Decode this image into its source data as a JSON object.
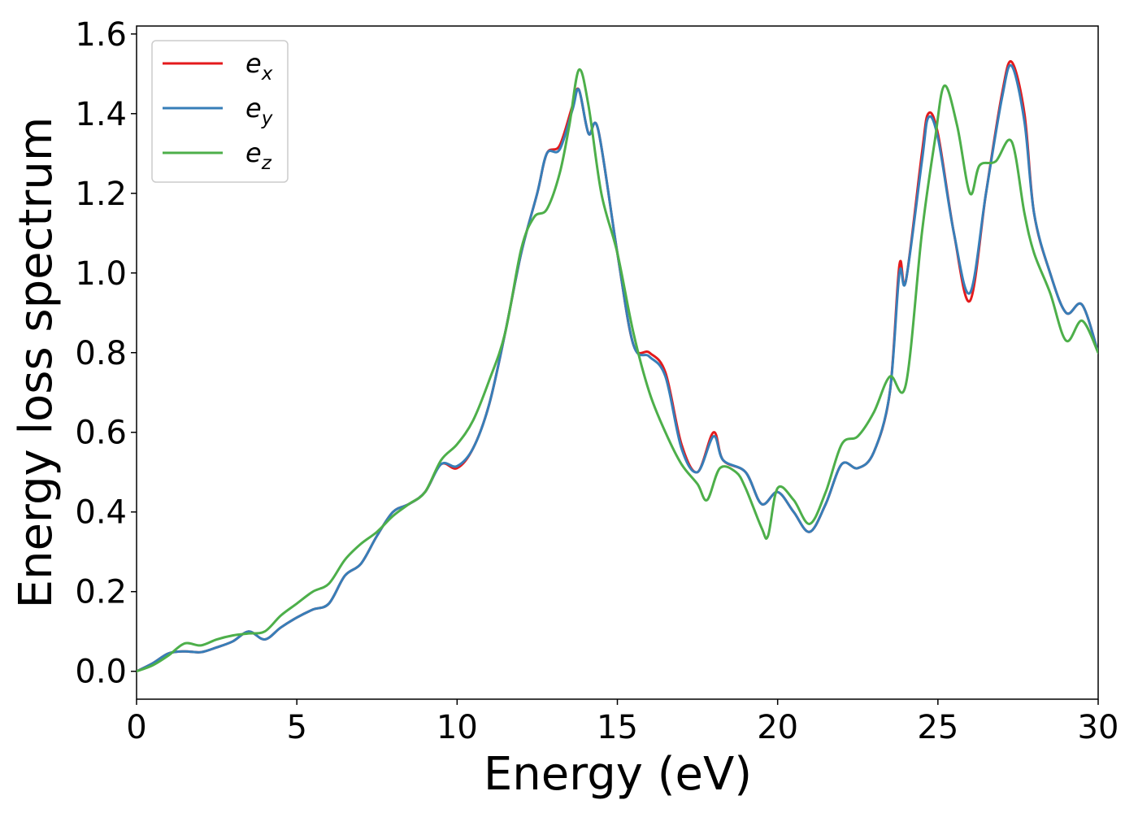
{
  "chart_data": {
    "type": "line",
    "title": "",
    "xlabel": "Energy (eV)",
    "ylabel": "Energy loss spectrum",
    "xlim": [
      0,
      30
    ],
    "ylim": [
      -0.07,
      1.62
    ],
    "xticks": [
      0,
      5,
      10,
      15,
      20,
      25,
      30
    ],
    "xtick_labels": [
      "0",
      "5",
      "10",
      "15",
      "20",
      "25",
      "30"
    ],
    "yticks": [
      0.0,
      0.2,
      0.4,
      0.6,
      0.8,
      1.0,
      1.2,
      1.4,
      1.6
    ],
    "ytick_labels": [
      "0.0",
      "0.2",
      "0.4",
      "0.6",
      "0.8",
      "1.0",
      "1.2",
      "1.4",
      "1.6"
    ],
    "grid": false,
    "legend_position": "top-left",
    "series": [
      {
        "name": "e",
        "subscript": "x",
        "color": "#e41a1c",
        "points": [
          [
            0,
            0.0
          ],
          [
            0.5,
            0.02
          ],
          [
            1,
            0.045
          ],
          [
            1.5,
            0.05
          ],
          [
            2,
            0.048
          ],
          [
            2.5,
            0.06
          ],
          [
            3,
            0.075
          ],
          [
            3.5,
            0.1
          ],
          [
            4,
            0.08
          ],
          [
            4.5,
            0.11
          ],
          [
            5,
            0.135
          ],
          [
            5.5,
            0.155
          ],
          [
            6,
            0.17
          ],
          [
            6.5,
            0.24
          ],
          [
            7,
            0.27
          ],
          [
            7.5,
            0.34
          ],
          [
            8,
            0.4
          ],
          [
            8.5,
            0.42
          ],
          [
            9,
            0.45
          ],
          [
            9.5,
            0.52
          ],
          [
            10,
            0.51
          ],
          [
            10.5,
            0.56
          ],
          [
            11,
            0.67
          ],
          [
            11.5,
            0.85
          ],
          [
            12,
            1.05
          ],
          [
            12.5,
            1.2
          ],
          [
            12.8,
            1.3
          ],
          [
            13.2,
            1.32
          ],
          [
            13.6,
            1.42
          ],
          [
            13.8,
            1.46
          ],
          [
            14.1,
            1.35
          ],
          [
            14.4,
            1.36
          ],
          [
            15,
            1.05
          ],
          [
            15.5,
            0.82
          ],
          [
            16,
            0.8
          ],
          [
            16.5,
            0.75
          ],
          [
            17,
            0.57
          ],
          [
            17.5,
            0.5
          ],
          [
            18,
            0.6
          ],
          [
            18.3,
            0.53
          ],
          [
            19,
            0.5
          ],
          [
            19.5,
            0.42
          ],
          [
            20,
            0.45
          ],
          [
            20.5,
            0.4
          ],
          [
            21,
            0.35
          ],
          [
            21.5,
            0.42
          ],
          [
            22,
            0.52
          ],
          [
            22.5,
            0.51
          ],
          [
            23,
            0.55
          ],
          [
            23.5,
            0.7
          ],
          [
            23.8,
            1.02
          ],
          [
            24,
            0.98
          ],
          [
            24.5,
            1.3
          ],
          [
            24.7,
            1.4
          ],
          [
            25,
            1.35
          ],
          [
            25.5,
            1.1
          ],
          [
            26,
            0.93
          ],
          [
            26.5,
            1.2
          ],
          [
            27,
            1.45
          ],
          [
            27.3,
            1.53
          ],
          [
            27.7,
            1.4
          ],
          [
            28,
            1.15
          ],
          [
            28.5,
            1.0
          ],
          [
            29,
            0.9
          ],
          [
            29.5,
            0.92
          ],
          [
            30,
            0.8
          ]
        ]
      },
      {
        "name": "e",
        "subscript": "y",
        "color": "#377eb8",
        "points": [
          [
            0,
            0.0
          ],
          [
            0.5,
            0.02
          ],
          [
            1,
            0.045
          ],
          [
            1.5,
            0.05
          ],
          [
            2,
            0.048
          ],
          [
            2.5,
            0.06
          ],
          [
            3,
            0.075
          ],
          [
            3.5,
            0.1
          ],
          [
            4,
            0.08
          ],
          [
            4.5,
            0.11
          ],
          [
            5,
            0.135
          ],
          [
            5.5,
            0.155
          ],
          [
            6,
            0.17
          ],
          [
            6.5,
            0.24
          ],
          [
            7,
            0.27
          ],
          [
            7.5,
            0.34
          ],
          [
            8,
            0.4
          ],
          [
            8.5,
            0.42
          ],
          [
            9,
            0.45
          ],
          [
            9.5,
            0.52
          ],
          [
            10,
            0.515
          ],
          [
            10.5,
            0.56
          ],
          [
            11,
            0.67
          ],
          [
            11.5,
            0.85
          ],
          [
            12,
            1.05
          ],
          [
            12.5,
            1.2
          ],
          [
            12.8,
            1.3
          ],
          [
            13.2,
            1.31
          ],
          [
            13.6,
            1.41
          ],
          [
            13.8,
            1.46
          ],
          [
            14.1,
            1.35
          ],
          [
            14.4,
            1.36
          ],
          [
            15,
            1.05
          ],
          [
            15.5,
            0.82
          ],
          [
            16,
            0.79
          ],
          [
            16.5,
            0.74
          ],
          [
            17,
            0.56
          ],
          [
            17.5,
            0.5
          ],
          [
            18,
            0.59
          ],
          [
            18.3,
            0.53
          ],
          [
            19,
            0.5
          ],
          [
            19.5,
            0.42
          ],
          [
            20,
            0.45
          ],
          [
            20.5,
            0.4
          ],
          [
            21,
            0.35
          ],
          [
            21.5,
            0.42
          ],
          [
            22,
            0.52
          ],
          [
            22.5,
            0.51
          ],
          [
            23,
            0.55
          ],
          [
            23.5,
            0.7
          ],
          [
            23.8,
            1.0
          ],
          [
            24,
            0.98
          ],
          [
            24.5,
            1.28
          ],
          [
            24.7,
            1.39
          ],
          [
            25,
            1.34
          ],
          [
            25.5,
            1.1
          ],
          [
            26,
            0.95
          ],
          [
            26.5,
            1.2
          ],
          [
            27,
            1.44
          ],
          [
            27.3,
            1.52
          ],
          [
            27.7,
            1.38
          ],
          [
            28,
            1.15
          ],
          [
            28.5,
            1.0
          ],
          [
            29,
            0.9
          ],
          [
            29.5,
            0.92
          ],
          [
            30,
            0.8
          ]
        ]
      },
      {
        "name": "e",
        "subscript": "z",
        "color": "#4daf4a",
        "points": [
          [
            0,
            0.0
          ],
          [
            0.5,
            0.015
          ],
          [
            1,
            0.04
          ],
          [
            1.5,
            0.07
          ],
          [
            2,
            0.065
          ],
          [
            2.5,
            0.08
          ],
          [
            3,
            0.09
          ],
          [
            3.5,
            0.095
          ],
          [
            4,
            0.1
          ],
          [
            4.5,
            0.14
          ],
          [
            5,
            0.17
          ],
          [
            5.5,
            0.2
          ],
          [
            6,
            0.22
          ],
          [
            6.5,
            0.28
          ],
          [
            7,
            0.32
          ],
          [
            7.5,
            0.35
          ],
          [
            8,
            0.39
          ],
          [
            8.5,
            0.42
          ],
          [
            9,
            0.45
          ],
          [
            9.5,
            0.53
          ],
          [
            10,
            0.57
          ],
          [
            10.5,
            0.63
          ],
          [
            11,
            0.73
          ],
          [
            11.5,
            0.85
          ],
          [
            12,
            1.06
          ],
          [
            12.4,
            1.14
          ],
          [
            12.8,
            1.16
          ],
          [
            13.2,
            1.25
          ],
          [
            13.5,
            1.37
          ],
          [
            13.8,
            1.51
          ],
          [
            14.1,
            1.42
          ],
          [
            14.5,
            1.2
          ],
          [
            15,
            1.05
          ],
          [
            15.5,
            0.85
          ],
          [
            16,
            0.7
          ],
          [
            16.5,
            0.6
          ],
          [
            17,
            0.52
          ],
          [
            17.5,
            0.47
          ],
          [
            17.8,
            0.43
          ],
          [
            18.2,
            0.51
          ],
          [
            18.7,
            0.5
          ],
          [
            19,
            0.46
          ],
          [
            19.5,
            0.36
          ],
          [
            19.7,
            0.34
          ],
          [
            20,
            0.46
          ],
          [
            20.5,
            0.43
          ],
          [
            21,
            0.37
          ],
          [
            21.5,
            0.45
          ],
          [
            22,
            0.57
          ],
          [
            22.5,
            0.59
          ],
          [
            23,
            0.65
          ],
          [
            23.5,
            0.74
          ],
          [
            24,
            0.72
          ],
          [
            24.5,
            1.1
          ],
          [
            24.9,
            1.33
          ],
          [
            25.2,
            1.47
          ],
          [
            25.6,
            1.37
          ],
          [
            26,
            1.2
          ],
          [
            26.3,
            1.27
          ],
          [
            26.8,
            1.28
          ],
          [
            27.3,
            1.33
          ],
          [
            27.7,
            1.15
          ],
          [
            28,
            1.05
          ],
          [
            28.5,
            0.95
          ],
          [
            29,
            0.83
          ],
          [
            29.5,
            0.88
          ],
          [
            30,
            0.8
          ]
        ]
      }
    ]
  }
}
